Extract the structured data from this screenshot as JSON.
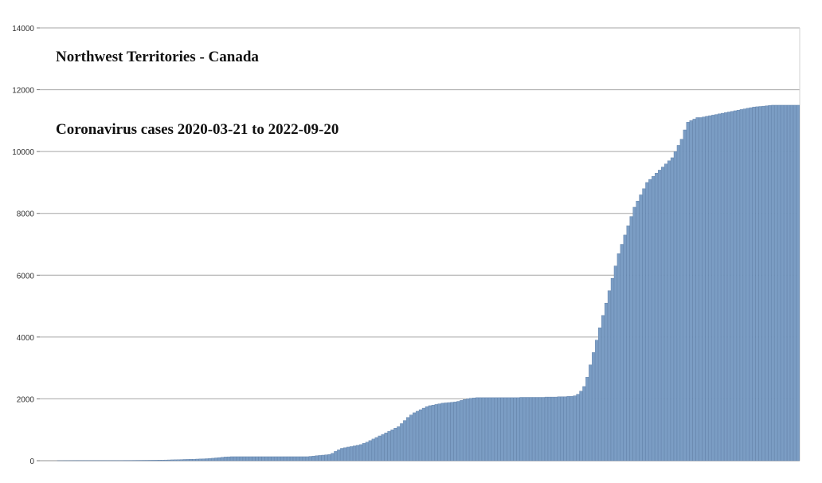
{
  "chart_data": {
    "type": "bar",
    "title": "Northwest Territories - Canada",
    "subtitle": "Coronavirus cases 2020-03-21 to 2022-09-20",
    "xlabel": "",
    "ylabel": "",
    "ylim": [
      0,
      14000
    ],
    "yticks": [
      "0",
      "2000",
      "4000",
      "6000",
      "8000",
      "10000",
      "12000",
      "14000"
    ],
    "grid": true,
    "legend": "none",
    "bar_color": "#7b9dc4",
    "bar_edge_color": "#5a7ca6",
    "grid_color": "#a6a6a6",
    "x_start": "2020-03-21",
    "x_end": "2022-09-20",
    "series": [
      {
        "values": [
          0,
          0,
          1,
          1,
          2,
          2,
          3,
          4,
          5,
          5,
          5,
          5,
          5,
          5,
          5,
          5,
          5,
          5,
          5,
          5,
          5,
          5,
          5,
          6,
          7,
          8,
          9,
          10,
          11,
          12,
          13,
          14,
          15,
          16,
          18,
          20,
          22,
          25,
          28,
          30,
          33,
          36,
          40,
          42,
          45,
          48,
          52,
          56,
          60,
          65,
          70,
          80,
          90,
          100,
          110,
          120,
          125,
          130,
          130,
          130,
          130,
          130,
          130,
          130,
          130,
          130,
          130,
          130,
          130,
          130,
          130,
          130,
          130,
          130,
          130,
          130,
          130,
          130,
          130,
          130,
          130,
          130,
          140,
          150,
          160,
          170,
          180,
          190,
          200,
          240,
          300,
          350,
          400,
          420,
          440,
          460,
          480,
          500,
          520,
          560,
          600,
          650,
          700,
          750,
          800,
          850,
          900,
          950,
          1000,
          1050,
          1100,
          1200,
          1300,
          1400,
          1480,
          1550,
          1600,
          1650,
          1700,
          1750,
          1780,
          1800,
          1820,
          1840,
          1860,
          1870,
          1880,
          1890,
          1900,
          1920,
          1950,
          1980,
          2000,
          2020,
          2030,
          2040,
          2040,
          2040,
          2040,
          2040,
          2040,
          2040,
          2040,
          2040,
          2040,
          2040,
          2040,
          2040,
          2040,
          2050,
          2050,
          2050,
          2050,
          2050,
          2050,
          2050,
          2050,
          2060,
          2060,
          2060,
          2060,
          2070,
          2070,
          2070,
          2080,
          2080,
          2100,
          2150,
          2250,
          2400,
          2700,
          3100,
          3500,
          3900,
          4300,
          4700,
          5100,
          5500,
          5900,
          6300,
          6700,
          7000,
          7300,
          7600,
          7900,
          8200,
          8400,
          8600,
          8800,
          9000,
          9100,
          9200,
          9300,
          9400,
          9500,
          9600,
          9700,
          9800,
          10000,
          10200,
          10400,
          10700,
          10950,
          11000,
          11050,
          11100,
          11100,
          11120,
          11140,
          11160,
          11180,
          11200,
          11220,
          11240,
          11260,
          11280,
          11300,
          11320,
          11340,
          11360,
          11380,
          11400,
          11420,
          11440,
          11450,
          11460,
          11470,
          11480,
          11490,
          11500,
          11500,
          11500,
          11500,
          11500,
          11500,
          11500,
          11500,
          11500
        ]
      }
    ]
  }
}
